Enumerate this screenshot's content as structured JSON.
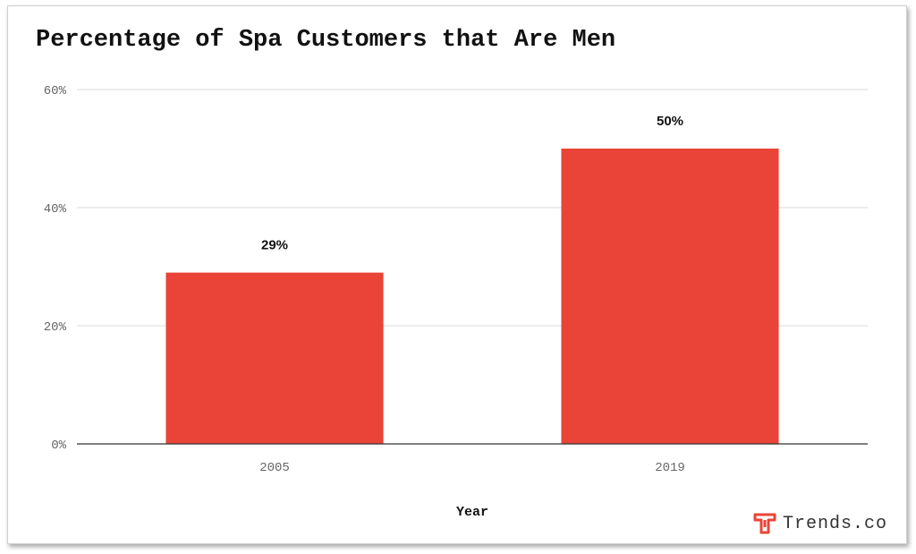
{
  "chart_data": {
    "type": "bar",
    "title": "Percentage of Spa Customers that Are Men",
    "categories": [
      "2005",
      "2019"
    ],
    "values": [
      29,
      50
    ],
    "value_labels": [
      "29%",
      "50%"
    ],
    "xlabel": "Year",
    "ylabel": "",
    "ylim": [
      0,
      60
    ],
    "yticks": [
      "0%",
      "20%",
      "40%",
      "60%"
    ],
    "grid": true,
    "bar_color": "#e94437"
  },
  "brand": {
    "name": "Trends.co",
    "icon": "trends-logo-icon",
    "color": "#e94437"
  }
}
